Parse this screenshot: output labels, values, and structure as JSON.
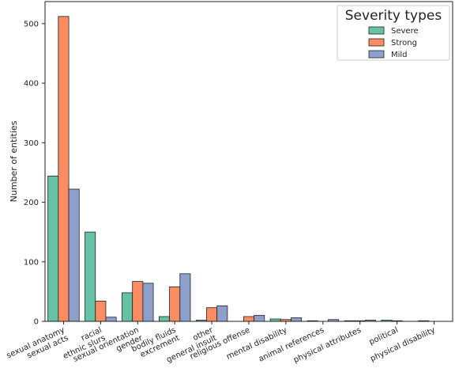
{
  "chart_data": {
    "type": "bar",
    "categories": [
      [
        "sexual anatomy",
        "sexual acts"
      ],
      [
        "racial",
        "ethnic slurs"
      ],
      [
        "sexual orientation",
        "gender"
      ],
      [
        "bodily fluids",
        "excrement"
      ],
      [
        "other",
        "general insult"
      ],
      [
        "religious offense"
      ],
      [
        "mental disability"
      ],
      [
        "animal references"
      ],
      [
        "physical attributes"
      ],
      [
        "political"
      ],
      [
        "physical disability"
      ]
    ],
    "series": [
      {
        "name": "Severe",
        "color": "#66c2a5",
        "values": [
          244,
          150,
          48,
          8,
          2,
          0,
          4,
          1,
          1,
          2,
          1
        ]
      },
      {
        "name": "Strong",
        "color": "#fc8d62",
        "values": [
          512,
          34,
          67,
          58,
          23,
          8,
          3,
          0,
          1,
          1,
          0
        ]
      },
      {
        "name": "Mild",
        "color": "#8da0cb",
        "values": [
          222,
          7,
          64,
          80,
          26,
          10,
          6,
          3,
          2,
          0,
          0
        ]
      }
    ],
    "ylabel": "Number of entities",
    "xlabel": "",
    "ylim": [
      0,
      537
    ],
    "yticks": [
      0,
      100,
      200,
      300,
      400,
      500
    ],
    "legend": {
      "title": "Severity types",
      "placement": "top-right"
    },
    "grid": false
  }
}
